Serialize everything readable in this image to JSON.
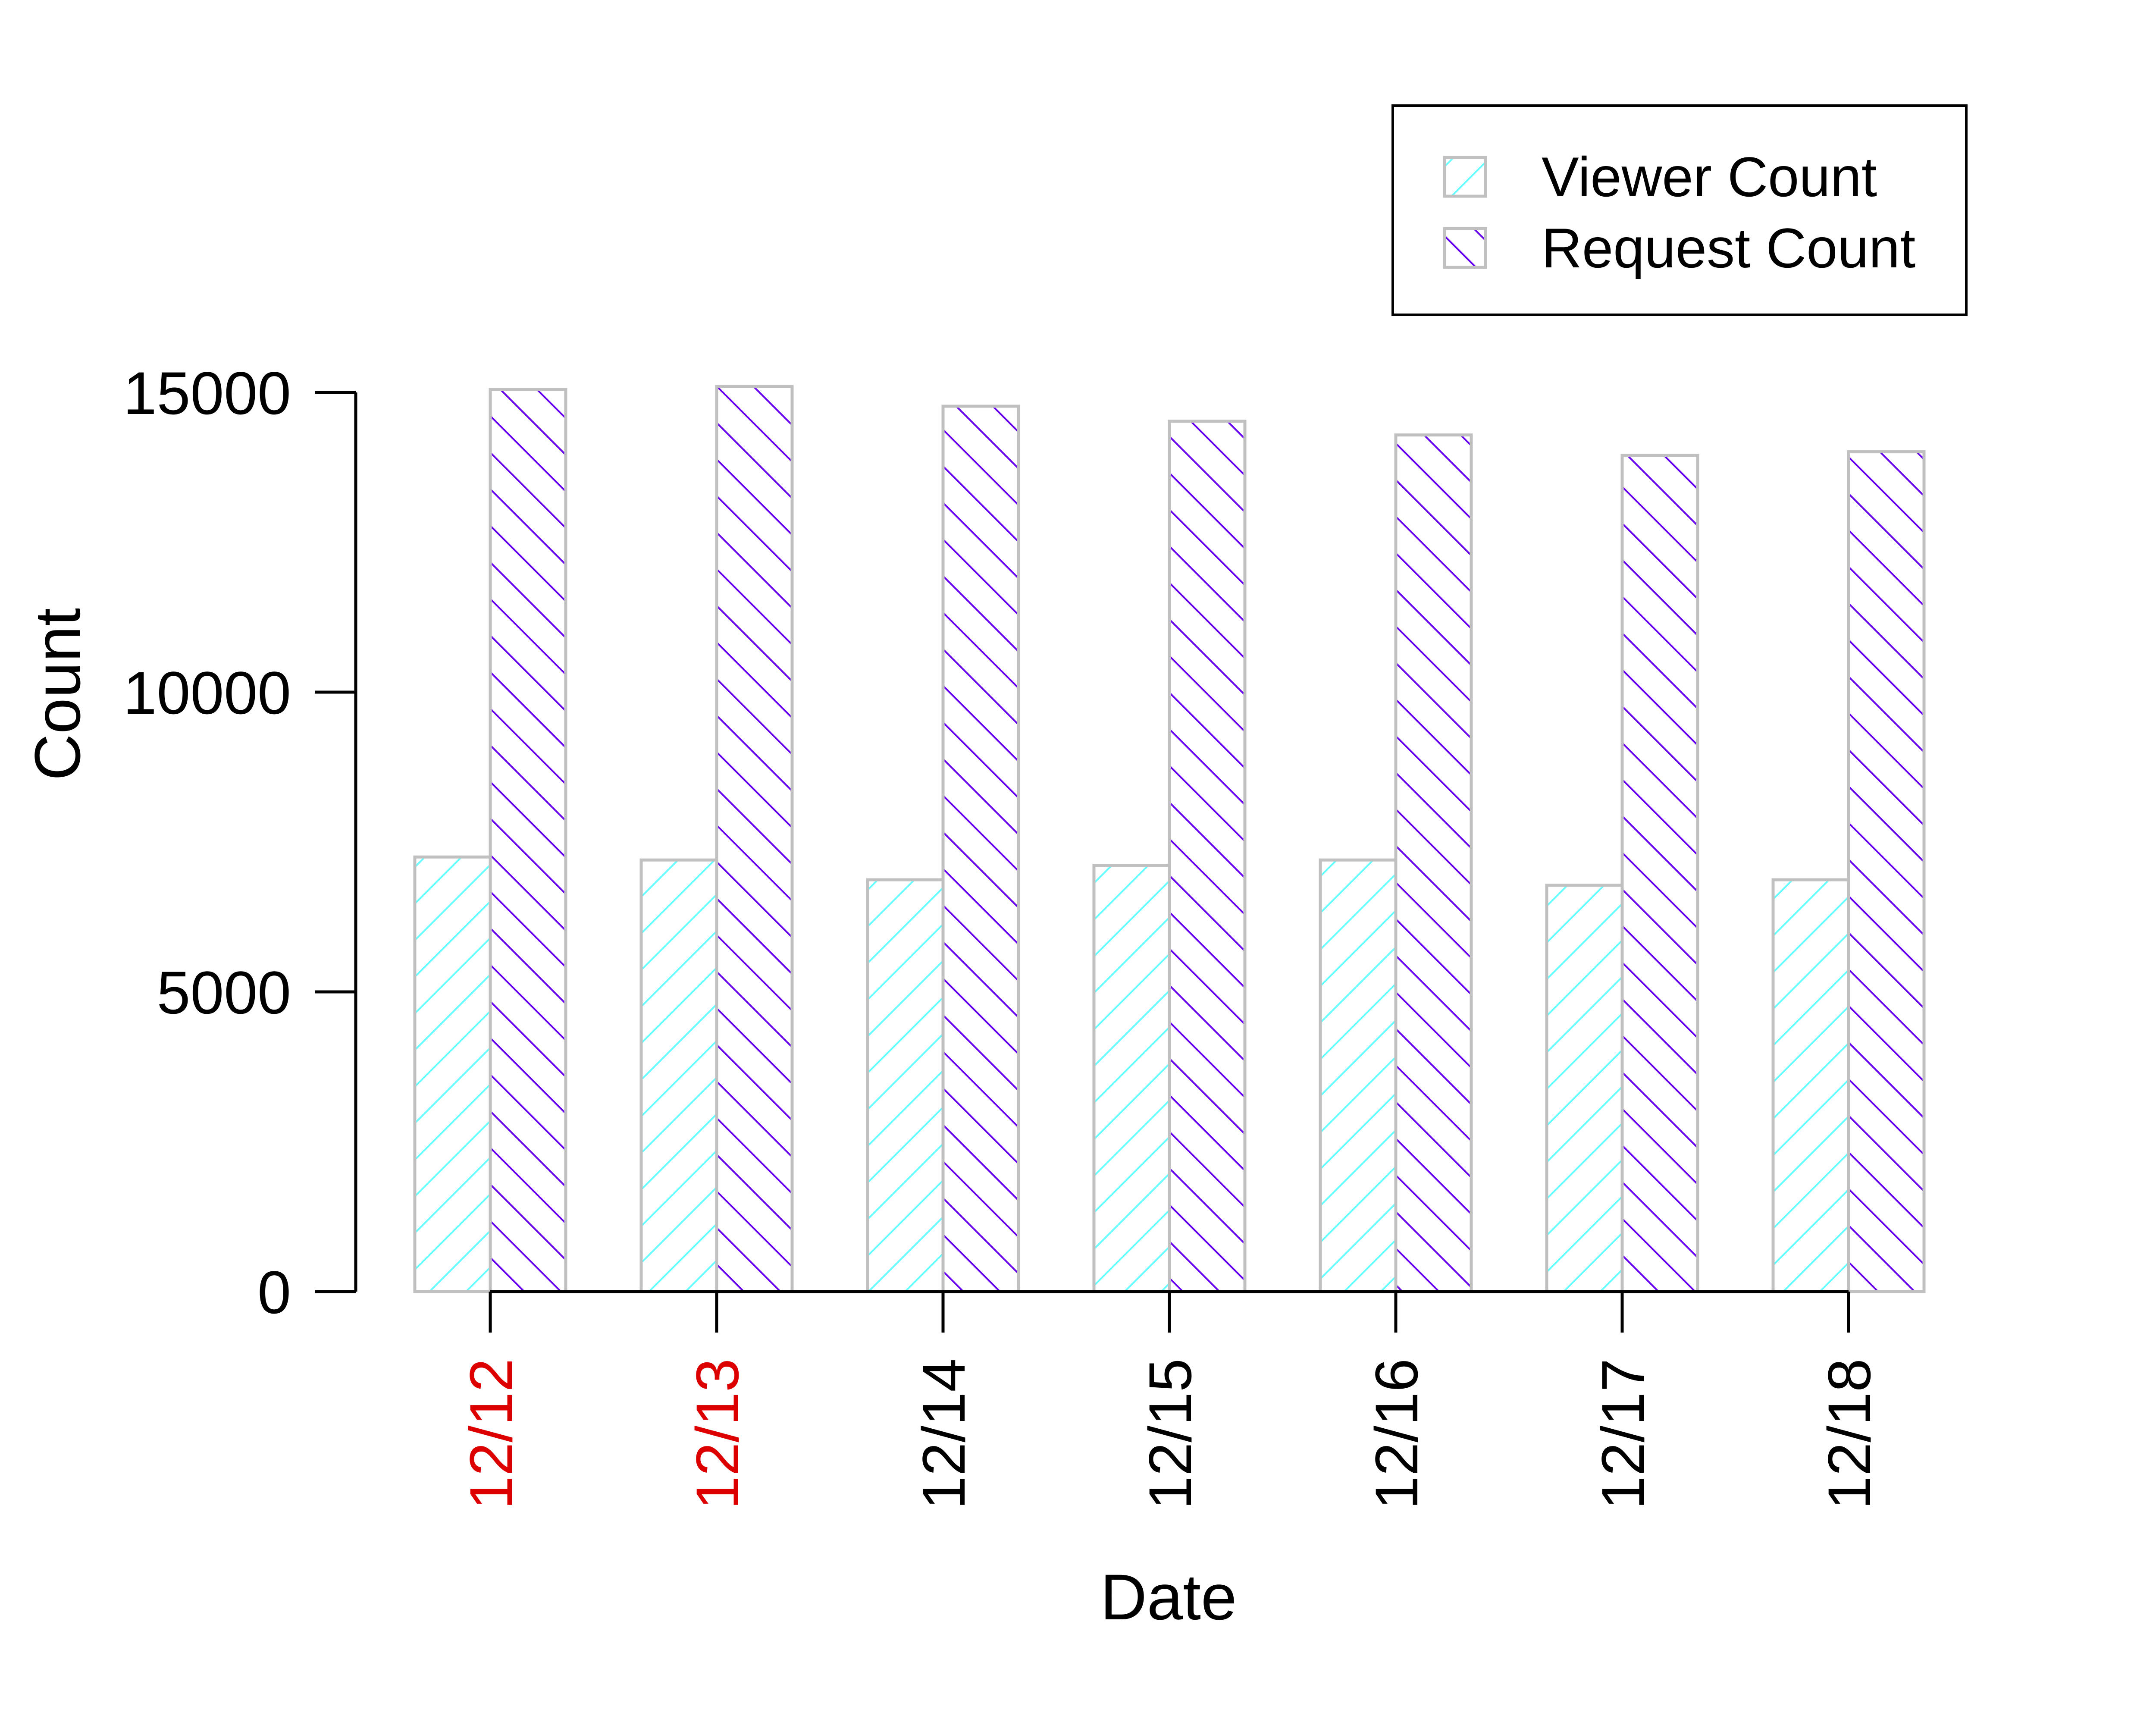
{
  "chart_data": {
    "type": "bar",
    "xlabel": "Date",
    "ylabel": "Count",
    "ylim": [
      0,
      15000
    ],
    "yticks": [
      0,
      5000,
      10000,
      15000
    ],
    "categories": [
      "12/12",
      "12/13",
      "12/14",
      "12/15",
      "12/16",
      "12/17",
      "12/18"
    ],
    "category_label_colors": [
      "#dd0000",
      "#dd0000",
      "#000000",
      "#000000",
      "#000000",
      "#000000",
      "#000000"
    ],
    "series": [
      {
        "name": "Viewer Count",
        "values": [
          7250,
          7200,
          6870,
          7110,
          7200,
          6780,
          6870
        ],
        "color": "#66ffff",
        "pattern": "hatch-forward"
      },
      {
        "name": "Request Count",
        "values": [
          15050,
          15100,
          14770,
          14520,
          14290,
          13950,
          14010
        ],
        "color": "#6600ee",
        "pattern": "hatch-back"
      }
    ],
    "bar_border_color": "#c0c0c0",
    "grid": false,
    "legend_position": "top-right"
  }
}
